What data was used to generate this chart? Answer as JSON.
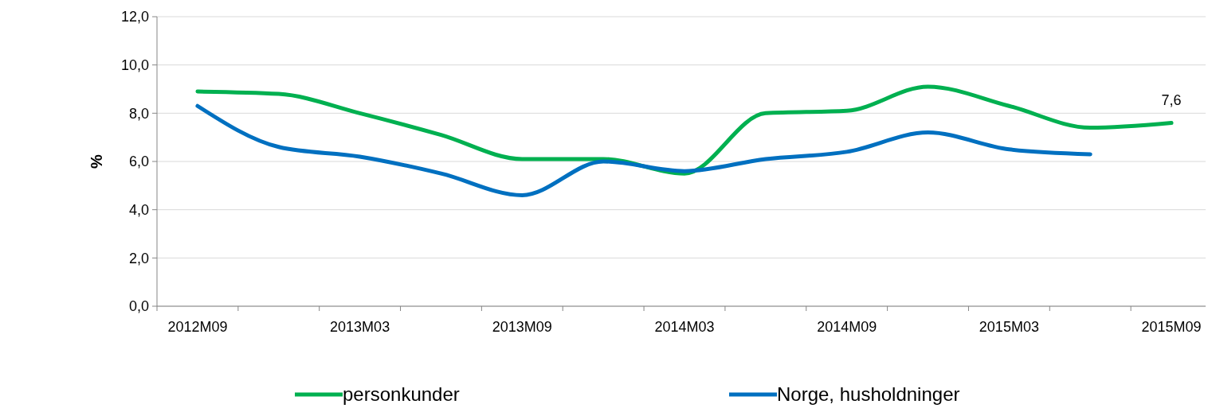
{
  "chart_data": {
    "type": "line",
    "ylabel": "%",
    "categories": [
      "2012M09",
      null,
      "2013M03",
      null,
      "2013M09",
      null,
      "2014M03",
      null,
      "2014M09",
      null,
      "2015M03",
      null,
      "2015M09"
    ],
    "series": [
      {
        "name": "personkunder",
        "color": "#00b050",
        "values": [
          8.9,
          8.8,
          8.0,
          7.1,
          6.1,
          6.1,
          5.5,
          8.0,
          8.1,
          9.1,
          8.3,
          7.4,
          7.6
        ],
        "value_labels": [
          null,
          null,
          null,
          null,
          null,
          null,
          null,
          null,
          null,
          null,
          null,
          null,
          "7,6"
        ]
      },
      {
        "name": "Norge, husholdninger",
        "color": "#0070c0",
        "values": [
          8.3,
          6.6,
          6.2,
          5.5,
          4.6,
          6.0,
          5.6,
          6.1,
          6.4,
          7.2,
          6.5,
          6.3,
          null
        ]
      }
    ],
    "ylim": [
      0,
      12
    ],
    "yticks": [
      {
        "value": 0,
        "label": "0,0"
      },
      {
        "value": 2,
        "label": "2,0"
      },
      {
        "value": 4,
        "label": "4,0"
      },
      {
        "value": 6,
        "label": "6,0"
      },
      {
        "value": 8,
        "label": "8,0"
      },
      {
        "value": 10,
        "label": "10,0"
      },
      {
        "value": 12,
        "label": "12,0"
      }
    ],
    "grid": "y",
    "legend": "bottom",
    "marker": "none",
    "line_style": "solid"
  }
}
